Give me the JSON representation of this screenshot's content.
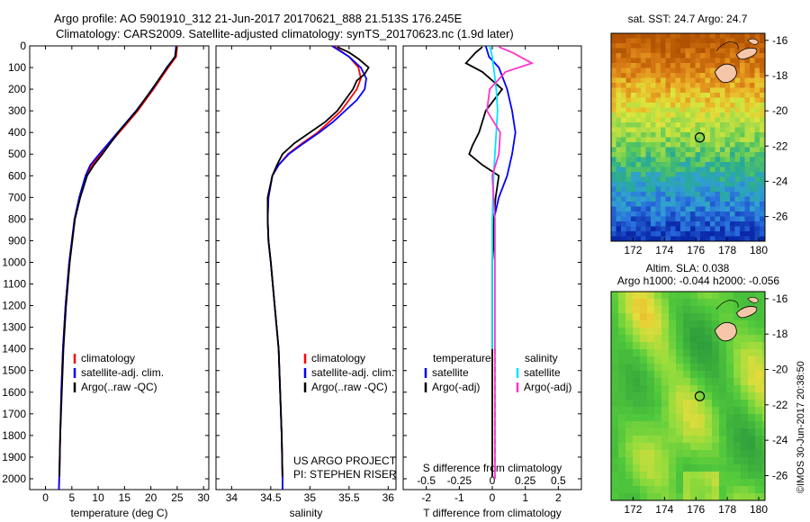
{
  "header": {
    "line1": "Argo profile: AO 5901910_312 21-Jun-2017 20170621_888 21.513S 176.245E",
    "line2": "Climatology: CARS2009. Satellite-adjusted climatology: synTS_20170623.nc (1.9d later)"
  },
  "chart_data": [
    {
      "type": "line",
      "xlabel": "temperature (deg C)",
      "xlim": [
        -3,
        31
      ],
      "xticks": [
        0,
        5,
        10,
        15,
        20,
        25,
        30
      ],
      "ylim": [
        2050,
        0
      ],
      "yticks": [
        0,
        100,
        200,
        300,
        400,
        500,
        600,
        700,
        800,
        900,
        1000,
        1100,
        1200,
        1300,
        1400,
        1500,
        1600,
        1700,
        1800,
        1900,
        2000
      ],
      "legend": [
        "climatology",
        "satellite-adj. clim.",
        "Argo(..raw -QC)"
      ],
      "series": [
        {
          "name": "climatology",
          "color": "#ff0000",
          "depth": [
            0,
            50,
            100,
            200,
            300,
            400,
            500,
            550,
            600,
            700,
            800,
            1000,
            1200,
            1400,
            1600,
            1800,
            2000,
            2050
          ],
          "values": [
            25,
            24.8,
            23.3,
            20.5,
            17.5,
            14,
            10.5,
            8.8,
            7.8,
            6.5,
            5.5,
            4.5,
            3.8,
            3.3,
            3,
            2.8,
            2.6,
            2.55
          ]
        },
        {
          "name": "satellite-adj. clim.",
          "color": "#0000ff",
          "depth": [
            0,
            50,
            100,
            200,
            300,
            400,
            500,
            550,
            600,
            700,
            800,
            1000,
            1200,
            1400,
            1600,
            1800,
            2000,
            2050
          ],
          "values": [
            24.8,
            24.6,
            23,
            20.3,
            17.2,
            13.7,
            10.2,
            8.5,
            7.6,
            6.4,
            5.5,
            4.5,
            3.8,
            3.3,
            3,
            2.8,
            2.6,
            2.55
          ]
        },
        {
          "name": "Argo(..raw -QC)",
          "color": "#000000",
          "depth": [
            5,
            50,
            100,
            200,
            300,
            400,
            500,
            550,
            600,
            700,
            800,
            1000,
            1200,
            1400,
            1600,
            1800,
            1990
          ],
          "values": [
            24.9,
            24.6,
            23.1,
            20.2,
            17.3,
            13.8,
            10.8,
            9.2,
            7.9,
            6.6,
            5.6,
            4.6,
            3.9,
            3.4,
            3.1,
            2.8,
            2.65
          ]
        }
      ]
    },
    {
      "type": "line",
      "xlabel": "salinity",
      "xlim": [
        33.8,
        36.1
      ],
      "xticks": [
        34,
        34.5,
        35,
        35.5,
        36
      ],
      "xtick_labels": [
        "34",
        "34.5",
        "35",
        "35.5",
        "36"
      ],
      "ylim": [
        2050,
        0
      ],
      "legend": [
        "climatology",
        "satellite-adj. clim.",
        "Argo(..raw -QC)"
      ],
      "series": [
        {
          "name": "climatology",
          "color": "#ff0000",
          "depth": [
            0,
            50,
            100,
            150,
            200,
            250,
            300,
            350,
            400,
            450,
            500,
            550,
            600,
            700,
            800,
            900,
            1000,
            1200,
            1400,
            1600,
            1800,
            2000,
            2050
          ],
          "values": [
            35.3,
            35.5,
            35.62,
            35.65,
            35.6,
            35.5,
            35.4,
            35.25,
            35.1,
            34.9,
            34.72,
            34.6,
            34.52,
            34.47,
            34.46,
            34.47,
            34.5,
            34.55,
            34.6,
            34.62,
            34.64,
            34.65,
            34.65
          ]
        },
        {
          "name": "satellite-adj. clim.",
          "color": "#0000ff",
          "depth": [
            0,
            50,
            100,
            150,
            200,
            250,
            300,
            350,
            400,
            450,
            500,
            550,
            600,
            700,
            800,
            900,
            1000,
            1200,
            1400,
            1600,
            1800,
            2000,
            2050
          ],
          "values": [
            35.28,
            35.5,
            35.65,
            35.72,
            35.7,
            35.6,
            35.45,
            35.3,
            35.12,
            34.92,
            34.73,
            34.6,
            34.52,
            34.47,
            34.46,
            34.47,
            34.5,
            34.55,
            34.6,
            34.62,
            34.64,
            34.65,
            34.65
          ]
        },
        {
          "name": "Argo(..raw -QC)",
          "color": "#000000",
          "depth": [
            5,
            30,
            60,
            100,
            130,
            160,
            200,
            250,
            300,
            350,
            400,
            450,
            500,
            550,
            600,
            700,
            800,
            900,
            1000,
            1200,
            1400,
            1600,
            1800,
            1990
          ],
          "values": [
            35.35,
            35.5,
            35.62,
            35.75,
            35.7,
            35.6,
            35.55,
            35.45,
            35.35,
            35.2,
            35.0,
            34.8,
            34.65,
            34.58,
            34.52,
            34.46,
            34.46,
            34.47,
            34.5,
            34.55,
            34.6,
            34.62,
            34.64,
            34.65
          ]
        }
      ],
      "annotation": [
        "US ARGO PROJECT",
        "PI: STEPHEN RISER"
      ]
    },
    {
      "type": "line",
      "xlabel": "T difference from climatology",
      "xlim": [
        -2.7,
        2.7
      ],
      "xticks": [
        -2,
        -1,
        0,
        1,
        2
      ],
      "top_xlabel": "S difference from climatology",
      "top_xticks": [
        "-0.5",
        "-0.25",
        "0",
        "0.25",
        "0.5"
      ],
      "ylim": [
        2050,
        0
      ],
      "legend": {
        "temperature_title": "temperature",
        "salinity_title": "salinity",
        "entries": [
          "satellite",
          "Argo(-adj)",
          "satellite",
          "Argo(-adj)"
        ]
      },
      "series": [
        {
          "name": "temperature satellite",
          "color": "#0000ff",
          "depth": [
            0,
            50,
            100,
            200,
            300,
            400,
            500,
            600,
            700,
            800,
            1000,
            1200,
            1400
          ],
          "values": [
            -0.2,
            -0.1,
            0.2,
            0.45,
            0.6,
            0.7,
            0.6,
            0.45,
            0.2,
            0.05,
            0,
            0,
            0
          ]
        },
        {
          "name": "temperature Argo(-adj)",
          "color": "#000000",
          "depth": [
            5,
            30,
            80,
            120,
            200,
            300,
            400,
            460,
            500,
            550,
            600,
            700,
            800,
            900,
            1000,
            1200,
            1400,
            1600,
            1800,
            1990
          ],
          "values": [
            -0.3,
            -0.5,
            -0.8,
            -0.3,
            0.3,
            -0.2,
            -0.4,
            -0.6,
            -0.7,
            -0.3,
            0.2,
            0.1,
            0.05,
            0.05,
            0,
            0,
            0,
            0,
            0,
            0
          ]
        },
        {
          "name": "salinity satellite",
          "color": "#00e5ff",
          "depth": [
            0,
            50,
            100,
            200,
            300,
            400,
            500,
            600,
            800,
            1000,
            1200,
            1400
          ],
          "values": [
            -0.02,
            0,
            0.01,
            0.03,
            0.04,
            0.03,
            0.02,
            0.01,
            0,
            0,
            0,
            0
          ]
        },
        {
          "name": "salinity Argo(-adj)",
          "color": "#ff33cc",
          "depth": [
            5,
            30,
            80,
            120,
            200,
            300,
            400,
            500,
            600,
            800,
            1000,
            1200,
            1400,
            1600,
            1800,
            1990
          ],
          "values": [
            0.05,
            0.15,
            0.3,
            0.1,
            -0.02,
            -0.04,
            0.06,
            0.05,
            0.0,
            0.02,
            0.02,
            0.02,
            0.02,
            0.02,
            0.02,
            0.02
          ]
        }
      ]
    },
    {
      "type": "heatmap",
      "title": "sat. SST: 24.7  Argo: 24.7",
      "xlim": [
        170.6,
        180.4
      ],
      "ylim": [
        -27.4,
        -15.6
      ],
      "xticks": [
        172,
        174,
        176,
        178,
        180
      ],
      "yticks": [
        -16,
        -18,
        -20,
        -22,
        -24,
        -26
      ],
      "marker": {
        "lon": 176.245,
        "lat": -21.513
      }
    },
    {
      "type": "heatmap",
      "title": "Altim. SLA: 0.038",
      "subtitle": "Argo h1000: -0.044 h2000: -0.056",
      "xlim": [
        170.6,
        180.4
      ],
      "ylim": [
        -27.4,
        -15.6
      ],
      "xticks": [
        172,
        174,
        176,
        178,
        180
      ],
      "yticks": [
        -16,
        -18,
        -20,
        -22,
        -24,
        -26
      ],
      "marker": {
        "lon": 176.245,
        "lat": -21.513
      }
    }
  ],
  "watermark": "©IMOS 30-Jun-2017 20:38:50"
}
